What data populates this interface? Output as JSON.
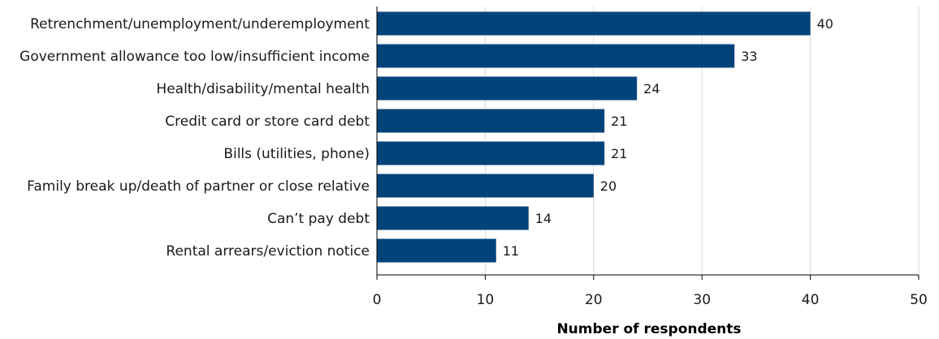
{
  "chart_data": {
    "type": "bar",
    "orientation": "horizontal",
    "categories": [
      "Retrenchment/unemployment/underemployment",
      "Government allowance too low/insufficient income",
      "Health/disability/mental health",
      "Credit card or store card debt",
      "Bills (utilities, phone)",
      "Family break up/death of partner or close relative",
      "Can’t pay debt",
      "Rental arrears/eviction notice"
    ],
    "values": [
      40,
      33,
      24,
      21,
      21,
      20,
      14,
      11
    ],
    "data_labels": [
      "40",
      "33",
      "24",
      "21",
      "21",
      "20",
      "14",
      "11"
    ],
    "xlabel": "Number of respondents",
    "ylabel": "",
    "xlim": [
      0,
      50
    ],
    "xticks": [
      0,
      10,
      20,
      30,
      40,
      50
    ],
    "xtick_labels": [
      "0",
      "10",
      "20",
      "30",
      "40",
      "50"
    ],
    "grid": "vertical",
    "bar_color": "#00437a"
  }
}
